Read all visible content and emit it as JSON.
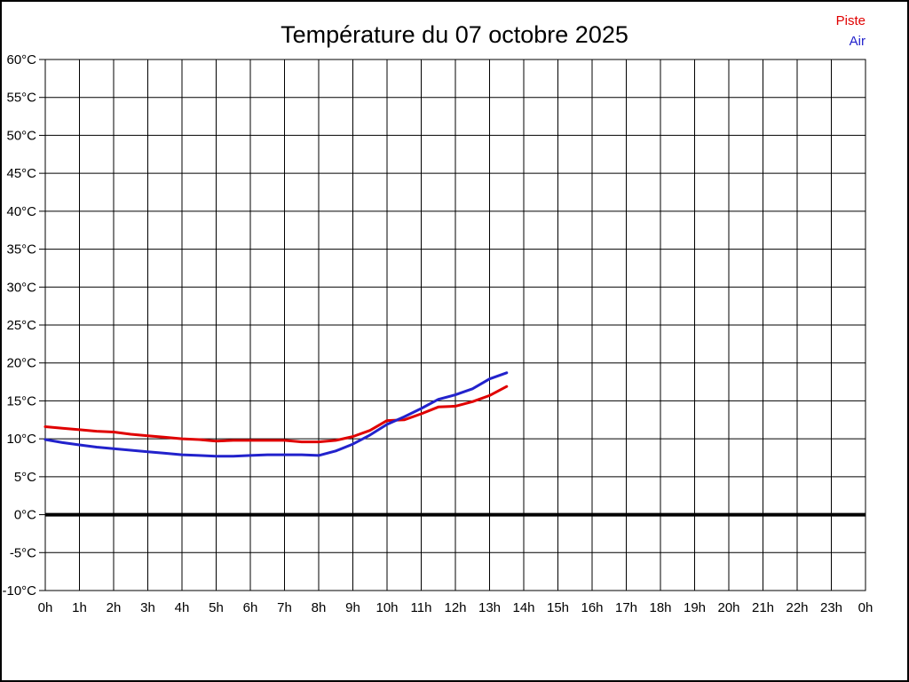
{
  "page": {
    "title": "Température du 07 octobre 2025",
    "background_color": "#ffffff",
    "frame_color": "#000000"
  },
  "legend": {
    "position": "top-right",
    "items": [
      {
        "label": "Piste",
        "color": "#e00000"
      },
      {
        "label": "Air",
        "color": "#2222cc"
      }
    ]
  },
  "chart_data": {
    "type": "line",
    "title": "Température du 07 octobre 2025",
    "xlabel": "",
    "ylabel": "",
    "x_unit": "hour of day",
    "y_unit": "°C",
    "xlim": [
      0,
      24
    ],
    "ylim": [
      -10,
      60
    ],
    "y_tick_step": 5,
    "grid": true,
    "legend_position": "top-right",
    "zero_line": {
      "value": 0,
      "color": "#000000",
      "width": 4
    },
    "x_tick_labels": [
      "0h",
      "1h",
      "2h",
      "3h",
      "4h",
      "5h",
      "6h",
      "7h",
      "8h",
      "9h",
      "10h",
      "11h",
      "12h",
      "13h",
      "14h",
      "15h",
      "16h",
      "17h",
      "18h",
      "19h",
      "20h",
      "21h",
      "22h",
      "23h",
      "0h"
    ],
    "y_tick_labels": [
      "60°C",
      "55°C",
      "50°C",
      "45°C",
      "40°C",
      "35°C",
      "30°C",
      "25°C",
      "20°C",
      "15°C",
      "10°C",
      "5°C",
      "0°C",
      "-5°C",
      "-10°C"
    ],
    "y_tick_values": [
      60,
      55,
      50,
      45,
      40,
      35,
      30,
      25,
      20,
      15,
      10,
      5,
      0,
      -5,
      -10
    ],
    "x": [
      0,
      0.5,
      1,
      1.5,
      2,
      2.5,
      3,
      3.5,
      4,
      4.5,
      5,
      5.5,
      6,
      6.5,
      7,
      7.5,
      8,
      8.5,
      9,
      9.5,
      10,
      10.5,
      11,
      11.5,
      12,
      12.5,
      13,
      13.5
    ],
    "series": [
      {
        "name": "Piste",
        "color": "#e00000",
        "values": [
          11.6,
          11.4,
          11.2,
          11.0,
          10.9,
          10.6,
          10.4,
          10.2,
          10.0,
          9.9,
          9.7,
          9.8,
          9.8,
          9.8,
          9.8,
          9.6,
          9.6,
          9.8,
          10.3,
          11.1,
          12.4,
          12.5,
          13.3,
          14.2,
          14.3,
          14.9,
          15.7,
          16.9
        ]
      },
      {
        "name": "Air",
        "color": "#2222cc",
        "values": [
          9.9,
          9.5,
          9.2,
          8.9,
          8.7,
          8.5,
          8.3,
          8.1,
          7.9,
          7.8,
          7.7,
          7.7,
          7.8,
          7.9,
          7.9,
          7.9,
          7.8,
          8.4,
          9.3,
          10.5,
          11.9,
          12.9,
          14.0,
          15.2,
          15.8,
          16.6,
          17.9,
          18.7
        ]
      }
    ]
  }
}
